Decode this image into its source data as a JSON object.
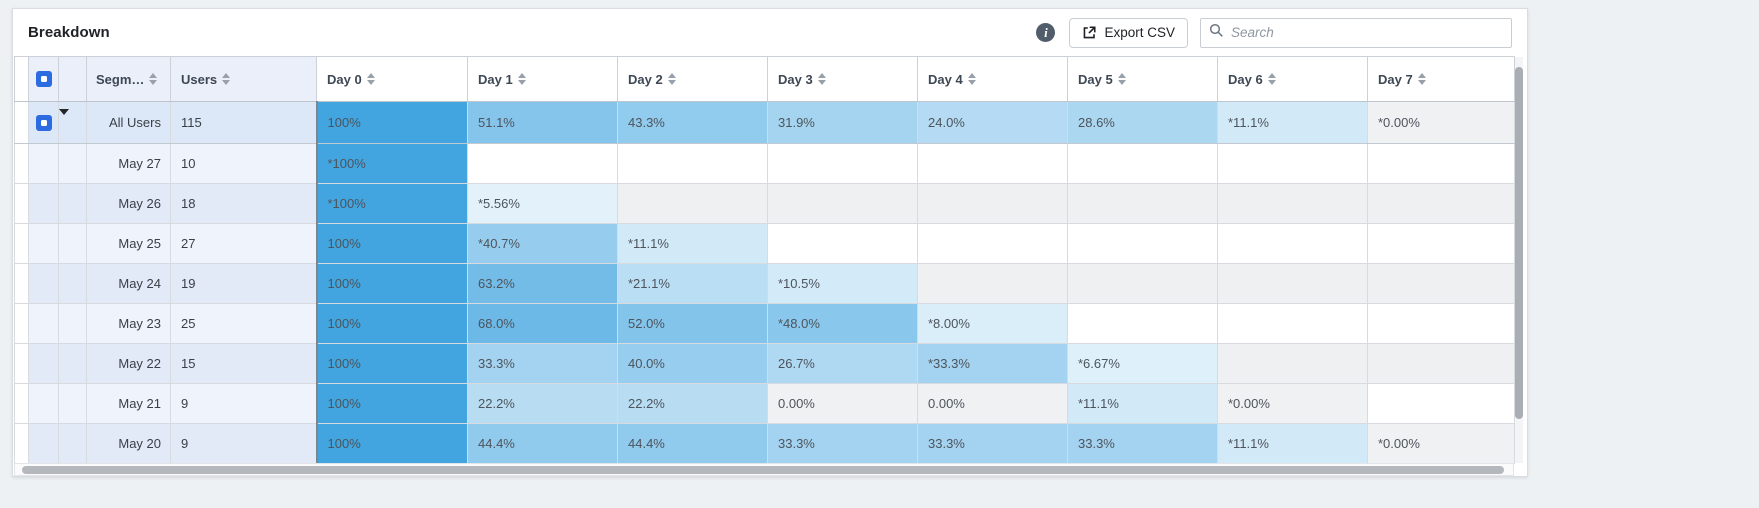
{
  "title": "Breakdown",
  "toolbar": {
    "info_icon": "info-circle",
    "export_label": "Export CSV",
    "search_placeholder": "Search"
  },
  "colors": {
    "heat_max": "#42a5e0",
    "zero_cell_bg": "#f0f1f3",
    "checkbox_accent": "#2d6ce0",
    "summary_left_bg": "#dce7f7",
    "odd_left_bg": "#eff3fc",
    "odd_empty_bg": "#ffffff",
    "even_left_bg": "#e2eaf7",
    "even_empty_bg": "#eef0f2"
  },
  "table": {
    "segment_header": "Segm…",
    "users_header": "Users",
    "day_headers": [
      "Day 0",
      "Day 1",
      "Day 2",
      "Day 3",
      "Day 4",
      "Day 5",
      "Day 6",
      "Day 7"
    ],
    "rows": [
      {
        "segment": "All Users",
        "users": "115",
        "checkbox": true,
        "expandable": true,
        "cells": [
          {
            "text": "100%",
            "value": 100
          },
          {
            "text": "51.1%",
            "value": 51.1
          },
          {
            "text": "43.3%",
            "value": 43.3
          },
          {
            "text": "31.9%",
            "value": 31.9
          },
          {
            "text": "24.0%",
            "value": 24.0
          },
          {
            "text": "28.6%",
            "value": 28.6
          },
          {
            "text": "*11.1%",
            "value": 11.1
          },
          {
            "text": "*0.00%",
            "value": 0
          }
        ]
      },
      {
        "segment": "May 27",
        "users": "10",
        "checkbox": false,
        "expandable": false,
        "cells": [
          {
            "text": "*100%",
            "value": 100
          },
          null,
          null,
          null,
          null,
          null,
          null,
          null
        ]
      },
      {
        "segment": "May 26",
        "users": "18",
        "checkbox": false,
        "expandable": false,
        "cells": [
          {
            "text": "*100%",
            "value": 100
          },
          {
            "text": "*5.56%",
            "value": 5.56
          },
          null,
          null,
          null,
          null,
          null,
          null
        ]
      },
      {
        "segment": "May 25",
        "users": "27",
        "checkbox": false,
        "expandable": false,
        "cells": [
          {
            "text": "100%",
            "value": 100
          },
          {
            "text": "*40.7%",
            "value": 40.7
          },
          {
            "text": "*11.1%",
            "value": 11.1
          },
          null,
          null,
          null,
          null,
          null
        ]
      },
      {
        "segment": "May 24",
        "users": "19",
        "checkbox": false,
        "expandable": false,
        "cells": [
          {
            "text": "100%",
            "value": 100
          },
          {
            "text": "63.2%",
            "value": 63.2
          },
          {
            "text": "*21.1%",
            "value": 21.1
          },
          {
            "text": "*10.5%",
            "value": 10.5
          },
          null,
          null,
          null,
          null
        ]
      },
      {
        "segment": "May 23",
        "users": "25",
        "checkbox": false,
        "expandable": false,
        "cells": [
          {
            "text": "100%",
            "value": 100
          },
          {
            "text": "68.0%",
            "value": 68.0
          },
          {
            "text": "52.0%",
            "value": 52.0
          },
          {
            "text": "*48.0%",
            "value": 48.0
          },
          {
            "text": "*8.00%",
            "value": 8.0
          },
          null,
          null,
          null
        ]
      },
      {
        "segment": "May 22",
        "users": "15",
        "checkbox": false,
        "expandable": false,
        "cells": [
          {
            "text": "100%",
            "value": 100
          },
          {
            "text": "33.3%",
            "value": 33.3
          },
          {
            "text": "40.0%",
            "value": 40.0
          },
          {
            "text": "26.7%",
            "value": 26.7
          },
          {
            "text": "*33.3%",
            "value": 33.3
          },
          {
            "text": "*6.67%",
            "value": 6.67
          },
          null,
          null
        ]
      },
      {
        "segment": "May 21",
        "users": "9",
        "checkbox": false,
        "expandable": false,
        "cells": [
          {
            "text": "100%",
            "value": 100
          },
          {
            "text": "22.2%",
            "value": 22.2
          },
          {
            "text": "22.2%",
            "value": 22.2
          },
          {
            "text": "0.00%",
            "value": 0
          },
          {
            "text": "0.00%",
            "value": 0
          },
          {
            "text": "*11.1%",
            "value": 11.1
          },
          {
            "text": "*0.00%",
            "value": 0
          },
          null
        ]
      },
      {
        "segment": "May 20",
        "users": "9",
        "checkbox": false,
        "expandable": false,
        "cells": [
          {
            "text": "100%",
            "value": 100
          },
          {
            "text": "44.4%",
            "value": 44.4
          },
          {
            "text": "44.4%",
            "value": 44.4
          },
          {
            "text": "33.3%",
            "value": 33.3
          },
          {
            "text": "33.3%",
            "value": 33.3
          },
          {
            "text": "33.3%",
            "value": 33.3
          },
          {
            "text": "*11.1%",
            "value": 11.1
          },
          {
            "text": "*0.00%",
            "value": 0
          }
        ]
      }
    ]
  }
}
